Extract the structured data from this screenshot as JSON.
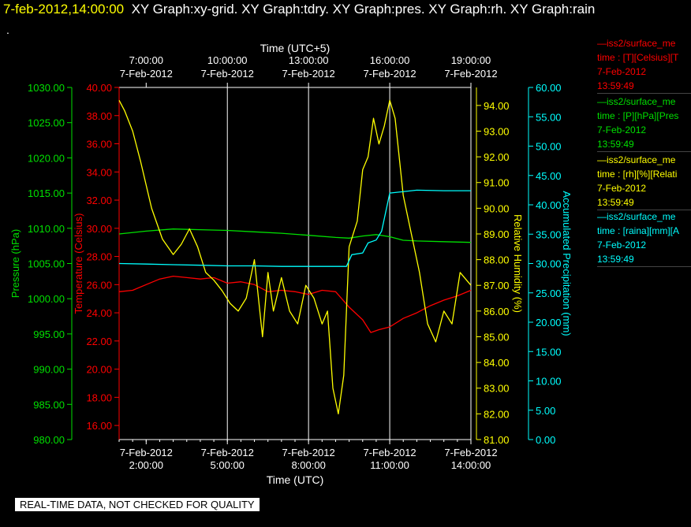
{
  "header": {
    "timestamp": "7-feb-2012,14:00:00",
    "titles": "XY Graph:xy-grid.  XY Graph:tdry.  XY Graph:pres.  XY Graph:rh.  XY Graph:rain",
    "dot": "."
  },
  "notice": "REAL-TIME DATA, NOT CHECKED FOR QUALITY",
  "colors": {
    "temperature": "#ff0000",
    "pressure": "#00e000",
    "humidity": "#ffff00",
    "precip": "#00ffff",
    "axes": "#ffffff"
  },
  "legend": [
    {
      "line1": "—iss2/surface_me",
      "line2": "time : [T][Celsius][T",
      "line3": "7-Feb-2012",
      "line4": "13:59:49",
      "color": "#ff0000"
    },
    {
      "line1": "—iss2/surface_me",
      "line2": "time : [P][hPa][Pres",
      "line3": "7-Feb-2012",
      "line4": "13:59:49",
      "color": "#00e000"
    },
    {
      "line1": "—iss2/surface_me",
      "line2": "time : [rh][%][Relati",
      "line3": "7-Feb-2012",
      "line4": "13:59:49",
      "color": "#ffff00"
    },
    {
      "line1": "—iss2/surface_me",
      "line2": "time : [raina][mm][A",
      "line3": "7-Feb-2012",
      "line4": "13:59:49",
      "color": "#00ffff"
    }
  ],
  "chart_data": {
    "type": "line",
    "xlabel_bottom": "Time (UTC)",
    "xlabel_top": "Time (UTC+5)",
    "xlim": [
      1,
      14
    ],
    "x_ticks_bottom": [
      {
        "value": 2,
        "date": "7-Feb-2012",
        "time": "2:00:00"
      },
      {
        "value": 5,
        "date": "7-Feb-2012",
        "time": "5:00:00"
      },
      {
        "value": 8,
        "date": "7-Feb-2012",
        "time": "8:00:00"
      },
      {
        "value": 11,
        "date": "7-Feb-2012",
        "time": "11:00:00"
      },
      {
        "value": 14,
        "date": "7-Feb-2012",
        "time": "14:00:00"
      }
    ],
    "x_ticks_top": [
      {
        "value": 2,
        "date": "7-Feb-2012",
        "time": "7:00:00"
      },
      {
        "value": 5,
        "date": "7-Feb-2012",
        "time": "10:00:00"
      },
      {
        "value": 8,
        "date": "7-Feb-2012",
        "time": "13:00:00"
      },
      {
        "value": 11,
        "date": "7-Feb-2012",
        "time": "16:00:00"
      },
      {
        "value": 14,
        "date": "7-Feb-2012",
        "time": "19:00:00"
      }
    ],
    "grid_x": [
      5,
      8,
      11
    ],
    "axes": {
      "pressure": {
        "label": "Pressure (hPa)",
        "ylim": [
          980,
          1030
        ],
        "ticks": [
          "980.00",
          "985.00",
          "990.00",
          "995.00",
          "1000.00",
          "1005.00",
          "1010.00",
          "1015.00",
          "1020.00",
          "1025.00",
          "1030.00"
        ],
        "color": "#00e000"
      },
      "temperature": {
        "label": "Temperature (Celsius)",
        "ylim": [
          15,
          40
        ],
        "ticks": [
          "16.00",
          "18.00",
          "20.00",
          "22.00",
          "24.00",
          "26.00",
          "28.00",
          "30.00",
          "32.00",
          "34.00",
          "36.00",
          "38.00",
          "40.00"
        ],
        "color": "#ff0000"
      },
      "humidity": {
        "label": "Relative Humidity (%)",
        "ylim": [
          81,
          94.7
        ],
        "ticks": [
          "81.00",
          "82.00",
          "83.00",
          "84.00",
          "85.00",
          "86.00",
          "87.00",
          "88.00",
          "89.00",
          "90.00",
          "91.00",
          "92.00",
          "93.00",
          "94.00"
        ],
        "color": "#ffff00"
      },
      "precip": {
        "label": "Accumulated Precipitation (mm)",
        "ylim": [
          0,
          60
        ],
        "ticks": [
          "0.00",
          "5.00",
          "10.00",
          "15.00",
          "20.00",
          "25.00",
          "30.00",
          "35.00",
          "40.00",
          "45.00",
          "50.00",
          "55.00",
          "60.00"
        ],
        "color": "#00ffff"
      }
    },
    "series": [
      {
        "key": "pressure",
        "axis": "pressure",
        "x": [
          1,
          2,
          3,
          4,
          5,
          6,
          7,
          8,
          9,
          9.5,
          10,
          10.5,
          11,
          11.5,
          12,
          13,
          14
        ],
        "y": [
          1009.2,
          1009.6,
          1009.9,
          1009.8,
          1009.7,
          1009.5,
          1009.3,
          1009.0,
          1008.7,
          1008.6,
          1008.9,
          1009.1,
          1008.8,
          1008.3,
          1008.2,
          1008.1,
          1008.0
        ]
      },
      {
        "key": "temperature",
        "axis": "temperature",
        "x": [
          1,
          1.5,
          2,
          2.5,
          3,
          3.5,
          4,
          4.5,
          5,
          5.5,
          6,
          6.5,
          7,
          7.5,
          8,
          8.5,
          9,
          9.5,
          10,
          10.3,
          10.6,
          11,
          11.5,
          12,
          12.5,
          13,
          13.5,
          14
        ],
        "y": [
          25.5,
          25.6,
          26.0,
          26.4,
          26.6,
          26.5,
          26.4,
          26.5,
          26.1,
          26.2,
          26.0,
          25.5,
          25.6,
          25.5,
          25.3,
          25.6,
          25.5,
          24.4,
          23.5,
          22.6,
          22.8,
          23.0,
          23.6,
          24.0,
          24.5,
          24.9,
          25.2,
          25.6
        ]
      },
      {
        "key": "humidity",
        "axis": "humidity",
        "x": [
          1,
          1.2,
          1.5,
          1.8,
          2.2,
          2.6,
          3,
          3.3,
          3.6,
          3.9,
          4.2,
          4.5,
          4.8,
          5.1,
          5.4,
          5.7,
          6,
          6.3,
          6.5,
          6.7,
          7,
          7.3,
          7.6,
          7.9,
          8.2,
          8.5,
          8.7,
          8.9,
          9.1,
          9.3,
          9.5,
          9.8,
          10,
          10.2,
          10.4,
          10.6,
          10.8,
          11,
          11.2,
          11.5,
          11.8,
          12.1,
          12.4,
          12.7,
          13,
          13.3,
          13.6,
          14
        ],
        "y": [
          94.2,
          93.8,
          93.0,
          91.8,
          90.0,
          88.8,
          88.2,
          88.6,
          89.2,
          88.5,
          87.5,
          87.2,
          86.8,
          86.3,
          86.0,
          86.5,
          88.0,
          85.0,
          87.5,
          86.0,
          87.3,
          86.0,
          85.5,
          87.0,
          86.5,
          85.5,
          86.0,
          83.0,
          82.0,
          83.5,
          88.5,
          89.5,
          91.5,
          92.0,
          93.5,
          92.5,
          93.2,
          94.2,
          93.5,
          90.5,
          89.0,
          87.5,
          85.5,
          84.8,
          86.0,
          85.5,
          87.5,
          87.0
        ]
      },
      {
        "key": "precip",
        "axis": "precip",
        "x": [
          1,
          2,
          3,
          4,
          5,
          6,
          7,
          8,
          9,
          9.4,
          9.6,
          10.0,
          10.2,
          10.5,
          10.7,
          11,
          12,
          13,
          14
        ],
        "y": [
          30.0,
          29.9,
          29.8,
          29.7,
          29.6,
          29.6,
          29.5,
          29.5,
          29.5,
          29.5,
          31.5,
          31.8,
          33.5,
          34.0,
          35.5,
          42.0,
          42.5,
          42.4,
          42.4
        ]
      }
    ]
  }
}
